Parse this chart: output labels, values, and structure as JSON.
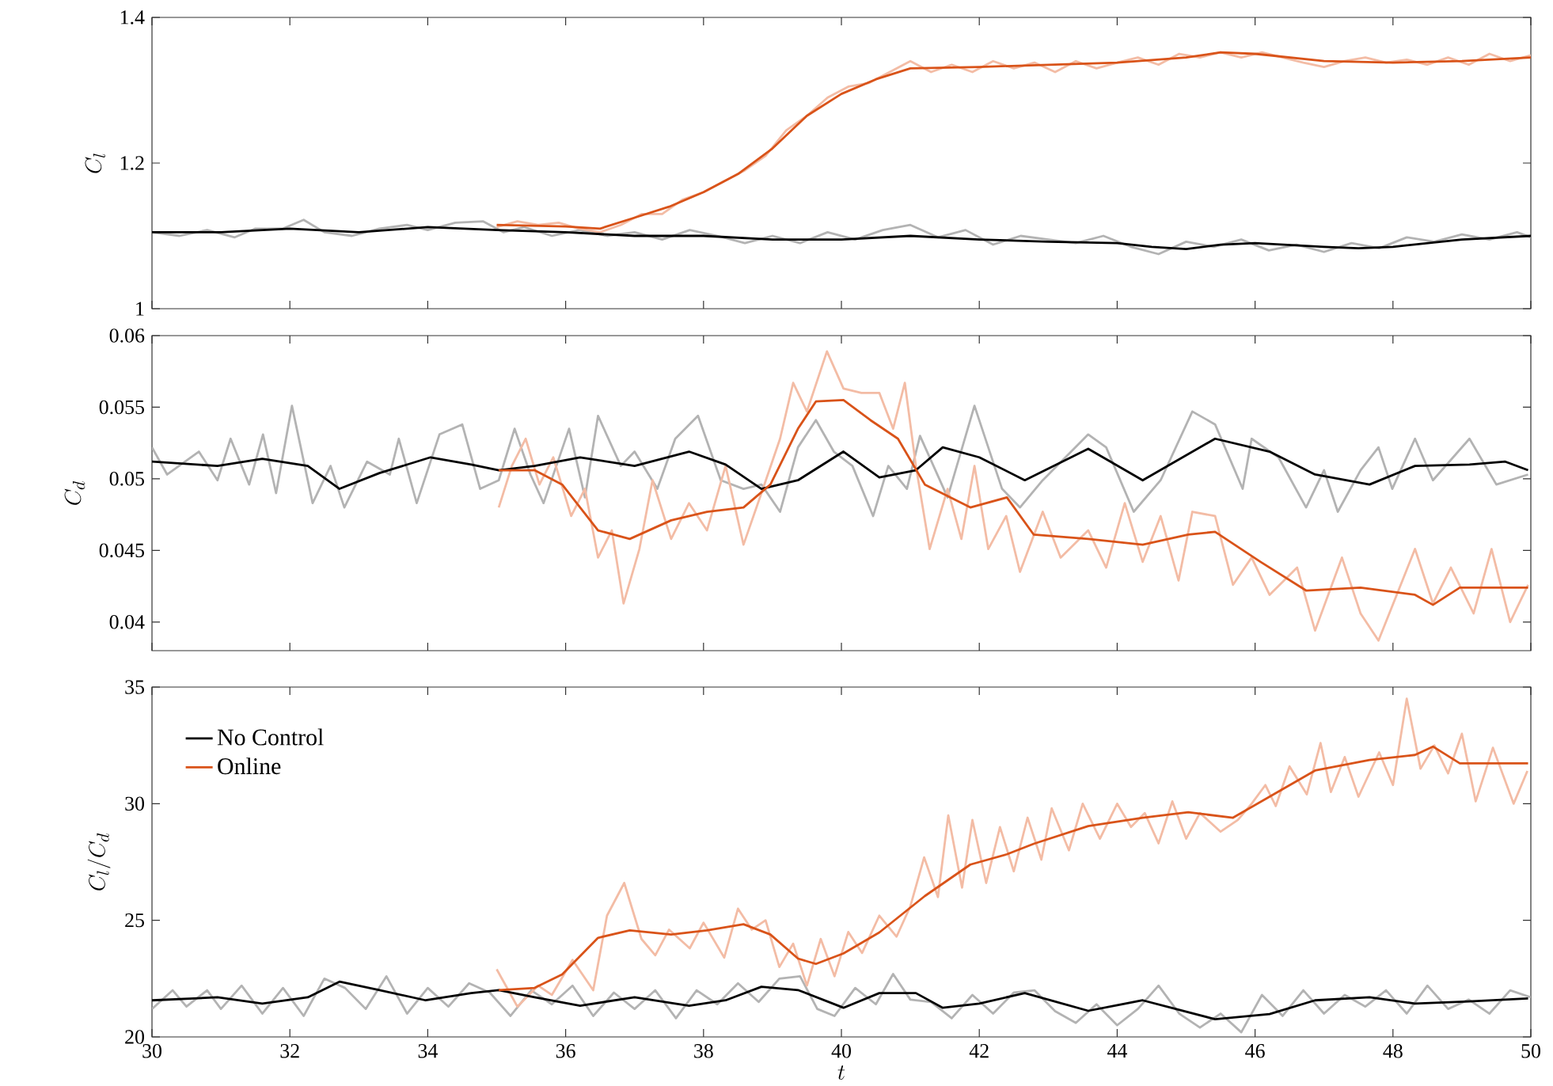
{
  "chart_data": [
    {
      "type": "line",
      "ylabel": "C_l",
      "xlim": [
        30,
        50
      ],
      "ylim": [
        1,
        1.4
      ],
      "xticks": [
        30,
        32,
        34,
        36,
        38,
        40,
        42,
        44,
        46,
        48,
        50
      ],
      "yticks": [
        1,
        1.2,
        1.4
      ],
      "tick_labels": "y",
      "series": [
        {
          "color": "#b3b3b3",
          "x": [
            30.0,
            30.4,
            30.8,
            31.2,
            31.5,
            31.9,
            32.2,
            32.5,
            32.9,
            33.3,
            33.7,
            34.0,
            34.4,
            34.8,
            35.1,
            35.4,
            35.8,
            36.2,
            36.6,
            37.0,
            37.4,
            37.8,
            38.2,
            38.6,
            39.0,
            39.4,
            39.8,
            40.2,
            40.6,
            41.0,
            41.4,
            41.8,
            42.2,
            42.6,
            43.0,
            43.4,
            43.8,
            44.2,
            44.6,
            45.0,
            45.4,
            45.8,
            46.2,
            46.6,
            47.0,
            47.4,
            47.8,
            48.2,
            48.6,
            49.0,
            49.4,
            49.8,
            50.0
          ],
          "values": [
            1.105,
            1.1,
            1.108,
            1.098,
            1.11,
            1.11,
            1.122,
            1.105,
            1.1,
            1.11,
            1.115,
            1.108,
            1.118,
            1.12,
            1.105,
            1.112,
            1.1,
            1.108,
            1.1,
            1.105,
            1.095,
            1.108,
            1.1,
            1.09,
            1.1,
            1.09,
            1.105,
            1.095,
            1.108,
            1.115,
            1.098,
            1.108,
            1.088,
            1.1,
            1.095,
            1.09,
            1.1,
            1.085,
            1.075,
            1.092,
            1.085,
            1.095,
            1.08,
            1.088,
            1.078,
            1.09,
            1.083,
            1.098,
            1.092,
            1.102,
            1.095,
            1.105,
            1.098
          ]
        },
        {
          "color": "#f3bca5",
          "x": [
            35.0,
            35.3,
            35.6,
            35.9,
            36.2,
            36.5,
            36.8,
            37.1,
            37.4,
            37.7,
            38.0,
            38.3,
            38.6,
            38.9,
            39.2,
            39.5,
            39.8,
            40.1,
            40.4,
            40.7,
            41.0,
            41.3,
            41.6,
            41.9,
            42.2,
            42.5,
            42.8,
            43.1,
            43.4,
            43.7,
            44.0,
            44.3,
            44.6,
            44.9,
            45.2,
            45.5,
            45.8,
            46.1,
            46.4,
            46.7,
            47.0,
            47.3,
            47.6,
            47.9,
            48.2,
            48.5,
            48.8,
            49.1,
            49.4,
            49.7,
            50.0
          ],
          "values": [
            1.112,
            1.12,
            1.115,
            1.118,
            1.11,
            1.105,
            1.115,
            1.13,
            1.13,
            1.15,
            1.16,
            1.175,
            1.19,
            1.21,
            1.245,
            1.265,
            1.29,
            1.305,
            1.31,
            1.325,
            1.34,
            1.325,
            1.335,
            1.325,
            1.34,
            1.33,
            1.338,
            1.325,
            1.34,
            1.33,
            1.338,
            1.345,
            1.335,
            1.35,
            1.345,
            1.352,
            1.345,
            1.352,
            1.345,
            1.338,
            1.332,
            1.34,
            1.345,
            1.338,
            1.342,
            1.335,
            1.345,
            1.335,
            1.35,
            1.34,
            1.348
          ]
        },
        {
          "color": "#000000",
          "x": [
            30,
            31,
            32,
            33,
            34,
            35,
            36,
            37,
            38,
            39,
            40,
            41,
            42,
            43,
            44,
            44.5,
            45,
            45.5,
            46,
            47,
            47.5,
            48,
            49,
            50
          ],
          "values": [
            1.105,
            1.105,
            1.11,
            1.105,
            1.112,
            1.108,
            1.105,
            1.1,
            1.1,
            1.095,
            1.095,
            1.1,
            1.095,
            1.092,
            1.09,
            1.085,
            1.082,
            1.088,
            1.09,
            1.085,
            1.083,
            1.085,
            1.095,
            1.1
          ]
        },
        {
          "color": "#d95319",
          "x": [
            35,
            36,
            36.5,
            37,
            37.5,
            38,
            38.5,
            39,
            39.5,
            40,
            40.5,
            41,
            42,
            43,
            44,
            45,
            45.5,
            46,
            47,
            48,
            49,
            50
          ],
          "values": [
            1.115,
            1.113,
            1.11,
            1.125,
            1.14,
            1.16,
            1.185,
            1.22,
            1.265,
            1.295,
            1.315,
            1.33,
            1.332,
            1.335,
            1.338,
            1.345,
            1.352,
            1.35,
            1.34,
            1.338,
            1.34,
            1.345
          ]
        }
      ]
    },
    {
      "type": "line",
      "ylabel": "C_d",
      "xlim": [
        30,
        50
      ],
      "ylim": [
        0.038,
        0.06
      ],
      "xticks": [
        30,
        32,
        34,
        36,
        38,
        40,
        42,
        44,
        46,
        48,
        50
      ],
      "yticks": [
        0.04,
        0.045,
        0.05,
        0.055,
        0.06
      ],
      "tick_labels": "y",
      "series": [
        {
          "color": "#b3b3b3",
          "x": [
            30.0,
            30.22,
            30.68,
            30.95,
            31.14,
            31.41,
            31.61,
            31.8,
            32.03,
            32.33,
            32.59,
            32.79,
            33.12,
            33.45,
            33.58,
            33.84,
            34.17,
            34.5,
            34.76,
            35.03,
            35.26,
            35.49,
            35.68,
            36.05,
            36.28,
            36.47,
            36.8,
            37.0,
            37.33,
            37.59,
            37.92,
            38.25,
            38.58,
            38.84,
            39.11,
            39.37,
            39.63,
            39.89,
            40.16,
            40.46,
            40.68,
            40.95,
            41.14,
            41.54,
            41.93,
            42.33,
            42.59,
            42.92,
            43.58,
            43.84,
            44.24,
            44.63,
            45.09,
            45.42,
            45.82,
            45.95,
            46.34,
            46.74,
            47.0,
            47.2,
            47.53,
            47.79,
            47.99,
            48.32,
            48.58,
            49.11,
            49.5,
            49.96
          ],
          "values": [
            0.0522,
            0.0503,
            0.0519,
            0.0499,
            0.0528,
            0.0496,
            0.0531,
            0.049,
            0.0551,
            0.0483,
            0.0509,
            0.048,
            0.0512,
            0.0503,
            0.0528,
            0.0483,
            0.0531,
            0.0538,
            0.0493,
            0.0499,
            0.0535,
            0.0503,
            0.0483,
            0.0535,
            0.0487,
            0.0544,
            0.0509,
            0.0519,
            0.0493,
            0.0528,
            0.0544,
            0.0499,
            0.0493,
            0.0496,
            0.0477,
            0.0522,
            0.0541,
            0.0519,
            0.0509,
            0.0474,
            0.0509,
            0.0493,
            0.053,
            0.0487,
            0.0551,
            0.0493,
            0.048,
            0.0499,
            0.0531,
            0.0522,
            0.0477,
            0.0499,
            0.0547,
            0.0538,
            0.0493,
            0.0528,
            0.0515,
            0.048,
            0.0506,
            0.0477,
            0.0506,
            0.0522,
            0.0493,
            0.0528,
            0.0499,
            0.0528,
            0.0496,
            0.0503
          ]
        },
        {
          "color": "#f3bca5",
          "x": [
            35.03,
            35.22,
            35.42,
            35.62,
            35.82,
            36.08,
            36.28,
            36.47,
            36.67,
            36.84,
            37.07,
            37.26,
            37.53,
            37.79,
            38.05,
            38.32,
            38.58,
            38.84,
            39.11,
            39.3,
            39.5,
            39.79,
            40.03,
            40.29,
            40.55,
            40.75,
            40.92,
            41.08,
            41.28,
            41.54,
            41.74,
            41.93,
            42.13,
            42.39,
            42.59,
            42.92,
            43.18,
            43.58,
            43.84,
            44.11,
            44.37,
            44.63,
            44.89,
            45.09,
            45.42,
            45.68,
            45.95,
            46.21,
            46.61,
            46.87,
            47.26,
            47.53,
            47.79,
            48.32,
            48.58,
            48.84,
            49.17,
            49.43,
            49.7,
            49.96
          ],
          "values": [
            0.048,
            0.0509,
            0.0528,
            0.0496,
            0.0515,
            0.0474,
            0.0493,
            0.0445,
            0.0464,
            0.0413,
            0.0451,
            0.0499,
            0.0458,
            0.0483,
            0.0464,
            0.0509,
            0.0454,
            0.049,
            0.0528,
            0.0567,
            0.0547,
            0.0589,
            0.0563,
            0.056,
            0.056,
            0.0535,
            0.0567,
            0.0509,
            0.0451,
            0.0493,
            0.0458,
            0.0509,
            0.0451,
            0.0474,
            0.0435,
            0.0477,
            0.0445,
            0.0464,
            0.0438,
            0.0483,
            0.0442,
            0.0474,
            0.0429,
            0.0477,
            0.0474,
            0.0426,
            0.0445,
            0.0419,
            0.0438,
            0.0394,
            0.0445,
            0.0406,
            0.0387,
            0.0451,
            0.0413,
            0.0438,
            0.0406,
            0.0451,
            0.04,
            0.0426
          ]
        },
        {
          "color": "#000000",
          "x": [
            30.0,
            30.95,
            31.6,
            32.26,
            32.72,
            33.3,
            34.04,
            34.63,
            35.03,
            35.55,
            36.21,
            37.0,
            37.79,
            38.32,
            38.84,
            39.37,
            40.03,
            40.55,
            41.08,
            41.47,
            42.0,
            42.66,
            43.58,
            44.37,
            45.42,
            46.21,
            46.87,
            47.66,
            48.32,
            49.11,
            49.63,
            49.96
          ],
          "values": [
            0.0512,
            0.0509,
            0.0514,
            0.0509,
            0.0493,
            0.0504,
            0.0515,
            0.051,
            0.0506,
            0.0509,
            0.0515,
            0.0509,
            0.0519,
            0.051,
            0.0493,
            0.0499,
            0.0519,
            0.0501,
            0.0506,
            0.0522,
            0.0515,
            0.0499,
            0.0521,
            0.0499,
            0.0528,
            0.0519,
            0.0503,
            0.0496,
            0.0509,
            0.051,
            0.0512,
            0.0506
          ]
        },
        {
          "color": "#d95319",
          "x": [
            35.03,
            35.55,
            35.95,
            36.47,
            36.93,
            37.53,
            38.05,
            38.58,
            38.97,
            39.37,
            39.63,
            40.03,
            40.42,
            40.82,
            41.21,
            41.87,
            42.4,
            42.79,
            43.58,
            44.37,
            45.03,
            45.42,
            46.08,
            46.74,
            47.53,
            48.32,
            48.58,
            48.97,
            49.63,
            49.96
          ],
          "values": [
            0.0506,
            0.0506,
            0.0496,
            0.0464,
            0.0458,
            0.0471,
            0.0477,
            0.048,
            0.0496,
            0.0535,
            0.0554,
            0.0555,
            0.0541,
            0.0528,
            0.0496,
            0.048,
            0.0487,
            0.0461,
            0.0458,
            0.0454,
            0.0461,
            0.0463,
            0.0442,
            0.0422,
            0.0424,
            0.0419,
            0.0412,
            0.0424,
            0.0424,
            0.0424
          ]
        }
      ]
    },
    {
      "type": "line",
      "xlabel": "t",
      "ylabel": "C_l/C_d",
      "xlim": [
        30,
        50
      ],
      "ylim": [
        20,
        35
      ],
      "xticks": [
        30,
        32,
        34,
        36,
        38,
        40,
        42,
        44,
        46,
        48,
        50
      ],
      "yticks": [
        20,
        25,
        30,
        35
      ],
      "legend": "top left",
      "series": [
        {
          "color": "#b3b3b3",
          "x": [
            30.0,
            30.3,
            30.5,
            30.8,
            31.0,
            31.3,
            31.6,
            31.9,
            32.2,
            32.5,
            32.8,
            33.1,
            33.4,
            33.7,
            34.0,
            34.3,
            34.6,
            34.9,
            35.2,
            35.5,
            35.8,
            36.1,
            36.4,
            36.7,
            37.0,
            37.3,
            37.6,
            37.9,
            38.2,
            38.5,
            38.8,
            39.1,
            39.4,
            39.65,
            39.9,
            40.2,
            40.5,
            40.75,
            41.0,
            41.3,
            41.6,
            41.9,
            42.2,
            42.5,
            42.8,
            43.1,
            43.4,
            43.7,
            44.0,
            44.3,
            44.6,
            44.9,
            45.2,
            45.5,
            45.8,
            46.1,
            46.4,
            46.7,
            47.0,
            47.3,
            47.6,
            47.9,
            48.2,
            48.5,
            48.8,
            49.1,
            49.4,
            49.7,
            50.0
          ],
          "values": [
            21.2,
            22.0,
            21.3,
            22.0,
            21.2,
            22.2,
            21.0,
            22.1,
            20.9,
            22.5,
            22.1,
            21.2,
            22.6,
            21.0,
            22.1,
            21.3,
            22.3,
            21.9,
            20.9,
            22.0,
            21.4,
            22.2,
            20.9,
            21.9,
            21.2,
            22.0,
            20.8,
            22.0,
            21.4,
            22.3,
            21.5,
            22.5,
            22.6,
            21.2,
            20.9,
            22.1,
            21.4,
            22.7,
            21.6,
            21.5,
            20.8,
            21.8,
            21.0,
            21.9,
            22.0,
            21.1,
            20.6,
            21.4,
            20.5,
            21.2,
            22.2,
            21.0,
            20.4,
            21.0,
            20.2,
            21.8,
            20.9,
            22.0,
            21.0,
            21.8,
            21.3,
            22.0,
            21.0,
            22.2,
            21.2,
            21.6,
            21.0,
            22.0,
            21.7
          ]
        },
        {
          "color": "#f3bca5",
          "x": [
            35.0,
            35.3,
            35.6,
            35.8,
            36.1,
            36.4,
            36.6,
            36.85,
            37.1,
            37.3,
            37.5,
            37.8,
            38.0,
            38.3,
            38.5,
            38.7,
            38.9,
            39.1,
            39.3,
            39.5,
            39.7,
            39.9,
            40.1,
            40.3,
            40.55,
            40.8,
            41.0,
            41.2,
            41.4,
            41.55,
            41.75,
            41.9,
            42.1,
            42.3,
            42.5,
            42.7,
            42.9,
            43.05,
            43.3,
            43.5,
            43.75,
            44.0,
            44.2,
            44.4,
            44.6,
            44.8,
            45.0,
            45.2,
            45.5,
            45.75,
            45.95,
            46.15,
            46.3,
            46.5,
            46.75,
            46.95,
            47.1,
            47.3,
            47.5,
            47.8,
            48.0,
            48.2,
            48.4,
            48.6,
            48.8,
            49.0,
            49.2,
            49.45,
            49.75,
            49.95
          ],
          "values": [
            22.9,
            21.3,
            22.2,
            21.8,
            23.3,
            22.0,
            25.2,
            26.6,
            24.2,
            23.5,
            24.6,
            23.8,
            24.9,
            23.4,
            25.5,
            24.6,
            25.0,
            23.0,
            24.0,
            22.2,
            24.2,
            22.6,
            24.5,
            23.6,
            25.2,
            24.3,
            25.6,
            27.7,
            26.0,
            29.5,
            26.4,
            29.3,
            26.6,
            29.0,
            27.1,
            29.4,
            27.6,
            29.8,
            28.0,
            30.0,
            28.5,
            30.0,
            29.0,
            29.6,
            28.3,
            30.1,
            28.5,
            29.6,
            28.8,
            29.3,
            30.0,
            30.8,
            29.9,
            31.6,
            30.4,
            32.6,
            30.5,
            32.0,
            30.3,
            32.2,
            30.8,
            34.5,
            31.5,
            32.5,
            31.3,
            33.0,
            30.1,
            32.4,
            30.0,
            31.4
          ]
        },
        {
          "name": "No Control",
          "color": "#000000",
          "x": [
            30.0,
            30.95,
            31.6,
            32.26,
            32.72,
            33.3,
            33.97,
            34.63,
            35.03,
            35.55,
            36.21,
            37.0,
            37.79,
            38.32,
            38.84,
            39.37,
            40.03,
            40.55,
            41.08,
            41.47,
            42.0,
            42.66,
            43.58,
            44.37,
            45.42,
            46.21,
            46.87,
            47.66,
            48.32,
            49.11,
            49.96
          ],
          "values": [
            21.57,
            21.7,
            21.43,
            21.7,
            22.37,
            22.01,
            21.57,
            21.88,
            22.01,
            21.7,
            21.34,
            21.7,
            21.34,
            21.57,
            22.15,
            22.01,
            21.25,
            21.88,
            21.88,
            21.25,
            21.43,
            21.88,
            21.12,
            21.57,
            20.76,
            20.98,
            21.57,
            21.7,
            21.43,
            21.52,
            21.65
          ]
        },
        {
          "name": "Online",
          "color": "#d95319",
          "x": [
            35.03,
            35.55,
            35.95,
            36.47,
            36.93,
            37.53,
            38.05,
            38.58,
            38.97,
            39.37,
            39.63,
            40.03,
            40.55,
            41.21,
            41.87,
            42.4,
            42.79,
            43.58,
            44.37,
            45.03,
            45.68,
            46.34,
            46.87,
            47.66,
            48.32,
            48.58,
            48.97,
            49.63,
            49.96
          ],
          "values": [
            22.01,
            22.1,
            22.68,
            24.25,
            24.57,
            24.39,
            24.57,
            24.83,
            24.39,
            23.36,
            23.13,
            23.58,
            24.48,
            26.04,
            27.39,
            27.83,
            28.28,
            29.04,
            29.4,
            29.63,
            29.4,
            30.52,
            31.42,
            31.87,
            32.09,
            32.45,
            31.73,
            31.73,
            31.73
          ]
        }
      ]
    }
  ]
}
